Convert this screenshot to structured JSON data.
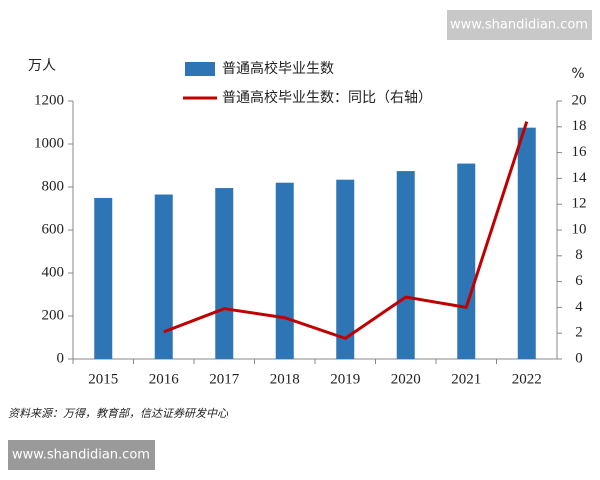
{
  "chart_data": {
    "type": "bar",
    "y_label": "万人",
    "y2_label": "%",
    "categories": [
      "2015",
      "2016",
      "2017",
      "2018",
      "2019",
      "2020",
      "2021",
      "2022"
    ],
    "series": [
      {
        "name": "普通高校毕业生数",
        "type": "bar",
        "color": "#2e75b6",
        "values": [
          749,
          765,
          795,
          820,
          834,
          874,
          909,
          1076
        ]
      },
      {
        "name": "普通高校毕业生数：同比（右轴）",
        "type": "line",
        "axis": "y2",
        "color": "#c00000",
        "values": [
          null,
          2.1,
          3.9,
          3.2,
          1.6,
          4.8,
          4.0,
          18.4
        ]
      }
    ],
    "ylim": [
      0,
      1200
    ],
    "yticks": [
      0,
      200,
      400,
      600,
      800,
      1000,
      1200
    ],
    "y2lim": [
      0,
      20
    ],
    "y2ticks": [
      0,
      2,
      4,
      6,
      8,
      10,
      12,
      14,
      16,
      18,
      20
    ],
    "legend": "top",
    "source": "资料来源：万得，教育部，信达证券研发中心"
  },
  "watermarks": [
    "www.shandidian.com",
    "www.shandidian.com"
  ]
}
